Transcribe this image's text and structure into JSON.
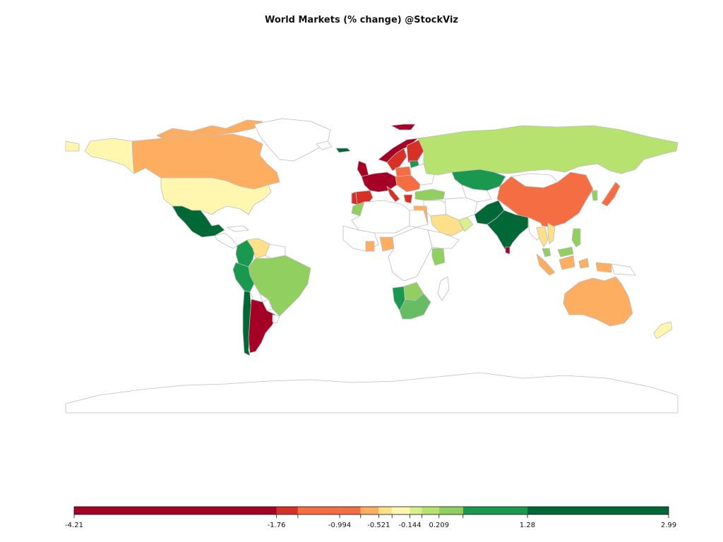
{
  "title": "World Markets (% change) @StockViz",
  "colors": {
    "r1": "#a50026",
    "r2": "#d73027",
    "r3": "#f46d43",
    "r4": "#fdae61",
    "r5": "#fee08b",
    "r6": "#fff6b0",
    "g1": "#d9ef8b",
    "g2": "#b8e270",
    "g3": "#91cf60",
    "g4": "#66bd63",
    "g5": "#1a9850",
    "g6": "#006837",
    "none": "#ffffff",
    "border": "#bdbdbd"
  },
  "legend": {
    "min": -4.21,
    "max": 2.99,
    "ticks": [
      "-4.21",
      "-1.76",
      "-0.994",
      "-0.521",
      "-0.144",
      "0.209",
      "1.28",
      "2.99"
    ],
    "tick_values": [
      -4.21,
      -1.76,
      -0.994,
      -0.521,
      -0.144,
      0.209,
      1.28,
      2.99
    ],
    "bins": [
      {
        "from": -4.21,
        "to": -1.76,
        "color": "r1"
      },
      {
        "from": -1.76,
        "to": -1.5,
        "color": "r2"
      },
      {
        "from": -1.5,
        "to": -0.994,
        "color": "r3"
      },
      {
        "from": -0.994,
        "to": -0.74,
        "color": "r3"
      },
      {
        "from": -0.74,
        "to": -0.521,
        "color": "r4"
      },
      {
        "from": -0.521,
        "to": -0.36,
        "color": "r5"
      },
      {
        "from": -0.36,
        "to": -0.144,
        "color": "r6"
      },
      {
        "from": -0.144,
        "to": 0.0,
        "color": "g1"
      },
      {
        "from": 0.0,
        "to": 0.209,
        "color": "g2"
      },
      {
        "from": 0.209,
        "to": 0.5,
        "color": "g3"
      },
      {
        "from": 0.5,
        "to": 1.28,
        "color": "g5"
      },
      {
        "from": 1.28,
        "to": 2.99,
        "color": "g6"
      }
    ]
  },
  "countries": [
    {
      "name": "Alaska",
      "color": "r6"
    },
    {
      "name": "Canada",
      "color": "r4"
    },
    {
      "name": "Canada Arctic Islands",
      "color": "r4"
    },
    {
      "name": "Greenland",
      "color": "none"
    },
    {
      "name": "United States",
      "color": "r6"
    },
    {
      "name": "Mexico",
      "color": "g6"
    },
    {
      "name": "Central America",
      "color": "none"
    },
    {
      "name": "Cuba",
      "color": "none"
    },
    {
      "name": "Colombia",
      "color": "g5"
    },
    {
      "name": "Venezuela",
      "color": "r5"
    },
    {
      "name": "Guianas",
      "color": "none"
    },
    {
      "name": "Brazil",
      "color": "g3"
    },
    {
      "name": "Peru",
      "color": "g5"
    },
    {
      "name": "Bolivia",
      "color": "none"
    },
    {
      "name": "Paraguay",
      "color": "none"
    },
    {
      "name": "Chile",
      "color": "g6"
    },
    {
      "name": "Argentina",
      "color": "r1"
    },
    {
      "name": "Uruguay",
      "color": "none"
    },
    {
      "name": "Iceland",
      "color": "none"
    },
    {
      "name": "Ireland",
      "color": "g6"
    },
    {
      "name": "United Kingdom",
      "color": "r1"
    },
    {
      "name": "Norway",
      "color": "r1"
    },
    {
      "name": "Sweden",
      "color": "r2"
    },
    {
      "name": "Finland",
      "color": "r2"
    },
    {
      "name": "Western Europe",
      "color": "r1"
    },
    {
      "name": "Spain",
      "color": "r2"
    },
    {
      "name": "Portugal",
      "color": "r2"
    },
    {
      "name": "Italy",
      "color": "r2"
    },
    {
      "name": "Eastern Europe",
      "color": "r3"
    },
    {
      "name": "Poland",
      "color": "r3"
    },
    {
      "name": "Baltics",
      "color": "g5"
    },
    {
      "name": "Belarus/Ukraine",
      "color": "none"
    },
    {
      "name": "Greece",
      "color": "r2"
    },
    {
      "name": "Turkey",
      "color": "g3"
    },
    {
      "name": "Russia",
      "color": "g2"
    },
    {
      "name": "Kazakhstan",
      "color": "g5"
    },
    {
      "name": "Central Asia",
      "color": "none"
    },
    {
      "name": "Mongolia",
      "color": "none"
    },
    {
      "name": "China",
      "color": "r3"
    },
    {
      "name": "Korea",
      "color": "g3"
    },
    {
      "name": "Japan",
      "color": "r3"
    },
    {
      "name": "Middle East",
      "color": "none"
    },
    {
      "name": "Iran",
      "color": "none"
    },
    {
      "name": "Saudi Arabia",
      "color": "r5"
    },
    {
      "name": "Jordan",
      "color": "r4"
    },
    {
      "name": "Gulf States",
      "color": "g1"
    },
    {
      "name": "Pakistan",
      "color": "g6"
    },
    {
      "name": "India",
      "color": "g6"
    },
    {
      "name": "Sri Lanka",
      "color": "r1"
    },
    {
      "name": "Southeast Asia",
      "color": "none"
    },
    {
      "name": "Thailand",
      "color": "r5"
    },
    {
      "name": "Vietnam",
      "color": "r5"
    },
    {
      "name": "Philippines",
      "color": "g3"
    },
    {
      "name": "Malaysia",
      "color": "g3"
    },
    {
      "name": "Indonesia",
      "color": "r4"
    },
    {
      "name": "Papua New Guinea",
      "color": "none"
    },
    {
      "name": "Australia",
      "color": "r4"
    },
    {
      "name": "New Zealand",
      "color": "r6"
    },
    {
      "name": "Morocco",
      "color": "g3"
    },
    {
      "name": "North Africa",
      "color": "none"
    },
    {
      "name": "Egypt",
      "color": "none"
    },
    {
      "name": "West Africa",
      "color": "none"
    },
    {
      "name": "Nigeria",
      "color": "r4"
    },
    {
      "name": "Ghana",
      "color": "r4"
    },
    {
      "name": "Central Africa",
      "color": "none"
    },
    {
      "name": "East Africa",
      "color": "none"
    },
    {
      "name": "Kenya",
      "color": "g3"
    },
    {
      "name": "Namibia",
      "color": "g5"
    },
    {
      "name": "Botswana",
      "color": "g3"
    },
    {
      "name": "South Africa",
      "color": "g4"
    },
    {
      "name": "Madagascar",
      "color": "none"
    },
    {
      "name": "Svalbard",
      "color": "r1"
    },
    {
      "name": "Antarctica",
      "color": "none"
    }
  ]
}
